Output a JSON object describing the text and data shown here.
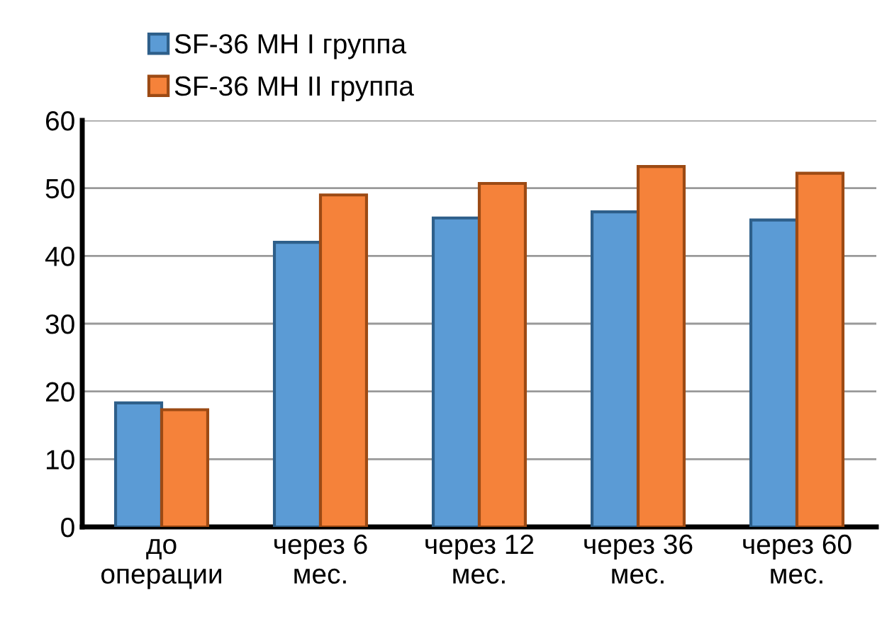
{
  "chart_data": {
    "type": "bar",
    "categories": [
      "до\nоперации",
      "через 6\nмес.",
      "через 12\nмес.",
      "через 36\nмес.",
      "через 60\nмес."
    ],
    "series": [
      {
        "name": "SF-36 МН I группа",
        "color": "#5b9bd5",
        "values": [
          18.3,
          42.0,
          45.6,
          46.5,
          45.3
        ]
      },
      {
        "name": "SF-36 МН II группа",
        "color": "#f5823a",
        "values": [
          17.3,
          49.0,
          50.7,
          53.2,
          52.2
        ]
      }
    ],
    "ylim": [
      0,
      60
    ],
    "yticks": [
      0,
      10,
      20,
      30,
      40,
      50,
      60
    ],
    "grid": "y",
    "legend": "top left"
  }
}
